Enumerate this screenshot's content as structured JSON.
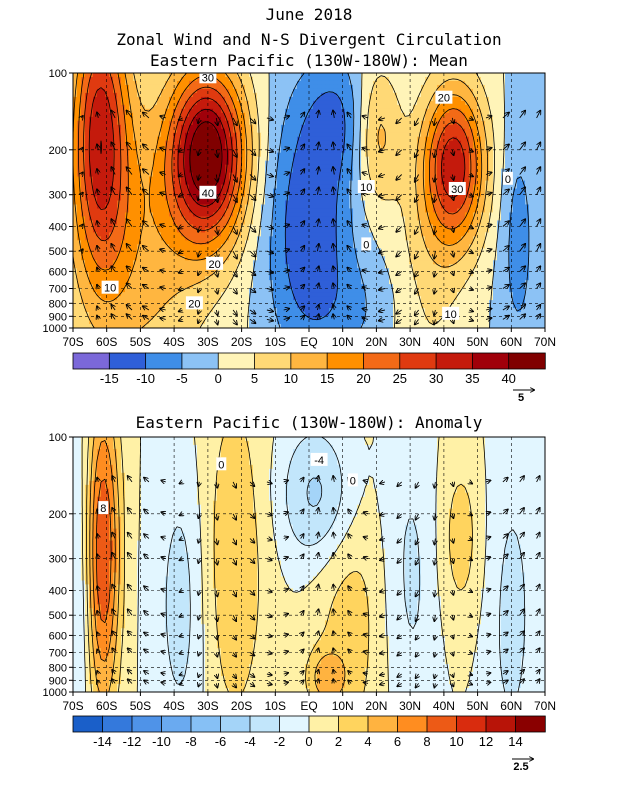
{
  "figure": {
    "title_line1": "June 2018",
    "title_line2": "Zonal Wind and N-S Divergent Circulation",
    "panel1_title": "Eastern Pacific (130W-180W): Mean",
    "panel2_title": "Eastern Pacific (130W-180W): Anomaly",
    "ref_vector_mean": "5",
    "ref_vector_anom": "2.5"
  },
  "chart_data": [
    {
      "type": "heatmap",
      "title": "Eastern Pacific (130W-180W): Mean",
      "x_ticks": [
        "70S",
        "60S",
        "50S",
        "40S",
        "30S",
        "20S",
        "10S",
        "EQ",
        "10N",
        "20N",
        "30N",
        "40N",
        "50N",
        "60N",
        "70N"
      ],
      "y_ticks": [
        "100",
        "200",
        "300",
        "400",
        "500",
        "600",
        "700",
        "800",
        "900",
        "1000"
      ],
      "y_scale": "log pressure",
      "colorbar_ticks": [
        "-15",
        "-10",
        "-5",
        "0",
        "5",
        "10",
        "15",
        "20",
        "25",
        "30",
        "35",
        "40"
      ],
      "colorbar_colors": [
        "#7b68d9",
        "#2f5fd8",
        "#3f8ee8",
        "#8cc2f5",
        "#fff4b8",
        "#ffd976",
        "#ffb640",
        "#ff9000",
        "#f36a17",
        "#e03a10",
        "#c41a0c",
        "#a0000a",
        "#800000"
      ],
      "contour_labels": [
        "30",
        "40",
        "20",
        "10",
        "20",
        "20",
        "30",
        "10",
        "0",
        "10",
        "0"
      ],
      "jets": [
        {
          "name": "SH jet",
          "lat": -30,
          "pressure": 200,
          "max_speed": 40
        },
        {
          "name": "NH jet",
          "lat": 43,
          "pressure": 220,
          "max_speed": 30
        },
        {
          "name": "SH polar",
          "lat": -62,
          "pressure": 150,
          "max_speed": 30
        }
      ],
      "easterlies": {
        "lat_range": [
          -10,
          20
        ],
        "min_speed": -10
      }
    },
    {
      "type": "heatmap",
      "title": "Eastern Pacific (130W-180W): Anomaly",
      "x_ticks": [
        "70S",
        "60S",
        "50S",
        "40S",
        "30S",
        "20S",
        "10S",
        "EQ",
        "10N",
        "20N",
        "30N",
        "40N",
        "50N",
        "60N",
        "70N"
      ],
      "y_ticks": [
        "100",
        "200",
        "300",
        "400",
        "500",
        "600",
        "700",
        "800",
        "900",
        "1000"
      ],
      "y_scale": "log pressure",
      "colorbar_ticks": [
        "-14",
        "-12",
        "-10",
        "-8",
        "-6",
        "-4",
        "-2",
        "0",
        "2",
        "4",
        "6",
        "8",
        "10",
        "12",
        "14"
      ],
      "colorbar_colors": [
        "#1a5fc9",
        "#3479dc",
        "#4f93e8",
        "#6aaaf0",
        "#86c0f5",
        "#a4d4f8",
        "#c2e6fb",
        "#e2f6ff",
        "#fff1a6",
        "#ffd45e",
        "#ffb340",
        "#ff8d20",
        "#ed5a16",
        "#d92c0e",
        "#b81408",
        "#8a0000"
      ],
      "contour_labels": [
        "0",
        "-4",
        "0",
        "8"
      ],
      "features": [
        {
          "name": "westerly anomaly",
          "lat": -60,
          "pressure": 250,
          "value": 8
        },
        {
          "name": "easterly anomaly",
          "lat": 5,
          "pressure": 150,
          "value": -4
        }
      ]
    }
  ]
}
